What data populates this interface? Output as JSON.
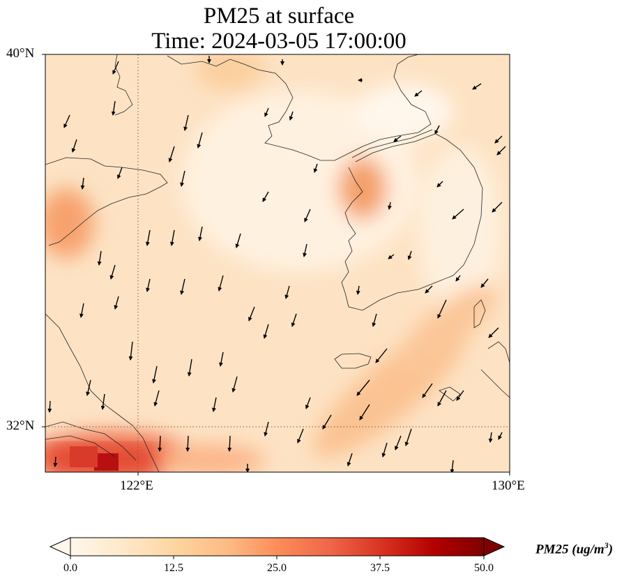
{
  "title": {
    "line1": "PM25 at surface",
    "line2": "Time: 2024-03-05 17:00:00"
  },
  "map": {
    "lat_range": [
      31,
      40.2
    ],
    "lon_range": [
      120,
      130
    ],
    "lat_ticks": [
      {
        "value": 40,
        "label": "40°N"
      },
      {
        "value": 32,
        "label": "32°N"
      }
    ],
    "lon_ticks": [
      {
        "value": 122,
        "label": "122°E"
      },
      {
        "value": 130,
        "label": "130°E"
      }
    ],
    "gridlines": {
      "lat": 32,
      "lon": 122,
      "style": "dotted"
    },
    "field": "PM25 concentration (shaded), surface wind (arrows)",
    "coastlines": true
  },
  "colorbar": {
    "label": "PM25 (ug/m",
    "label_sup": "3",
    "label_end": ")",
    "min": 0,
    "max": 50,
    "ticks": [
      "0.0",
      "12.5",
      "25.0",
      "37.5",
      "50.0"
    ],
    "colormap": "OrRd",
    "extend": "both",
    "colors": [
      "#fff7ec",
      "#fee8c8",
      "#fdd49e",
      "#fdbb84",
      "#fc8d59",
      "#ef6548",
      "#d7301f",
      "#b30000",
      "#7f0000"
    ]
  }
}
